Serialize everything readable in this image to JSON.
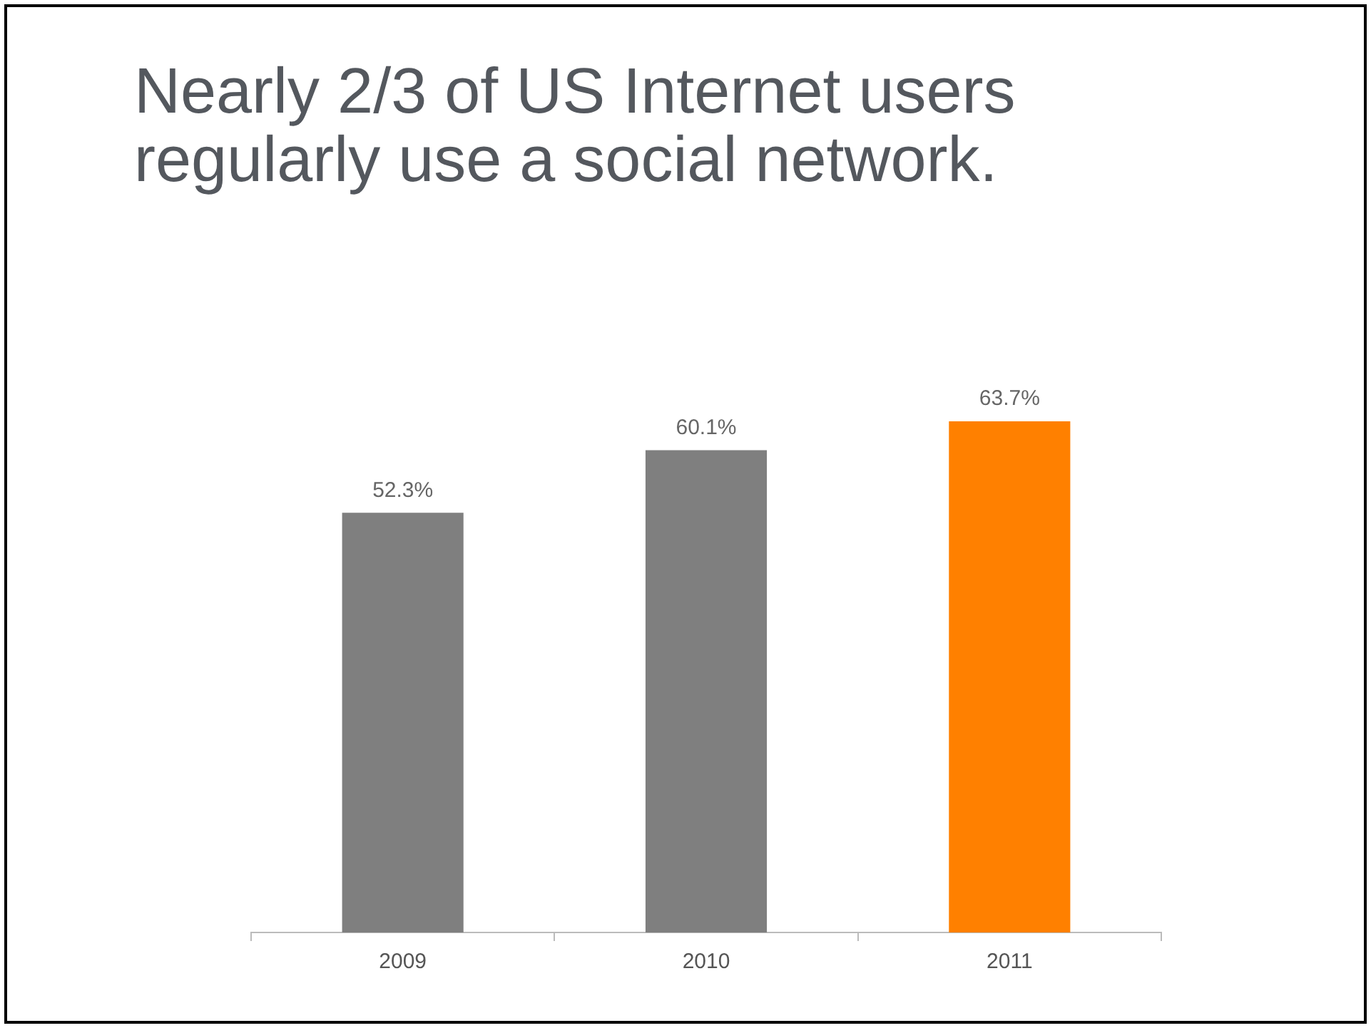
{
  "chart_data": {
    "type": "bar",
    "title": "Nearly 2/3 of US Internet users regularly use a social network.",
    "categories": [
      "2009",
      "2010",
      "2011"
    ],
    "values": [
      52.3,
      60.1,
      63.7
    ],
    "colors": [
      "#7f7f7f",
      "#7f7f7f",
      "#ff8000"
    ],
    "value_labels": [
      "52.3%",
      "60.1%",
      "63.7%"
    ],
    "grid": false,
    "legend": false
  }
}
